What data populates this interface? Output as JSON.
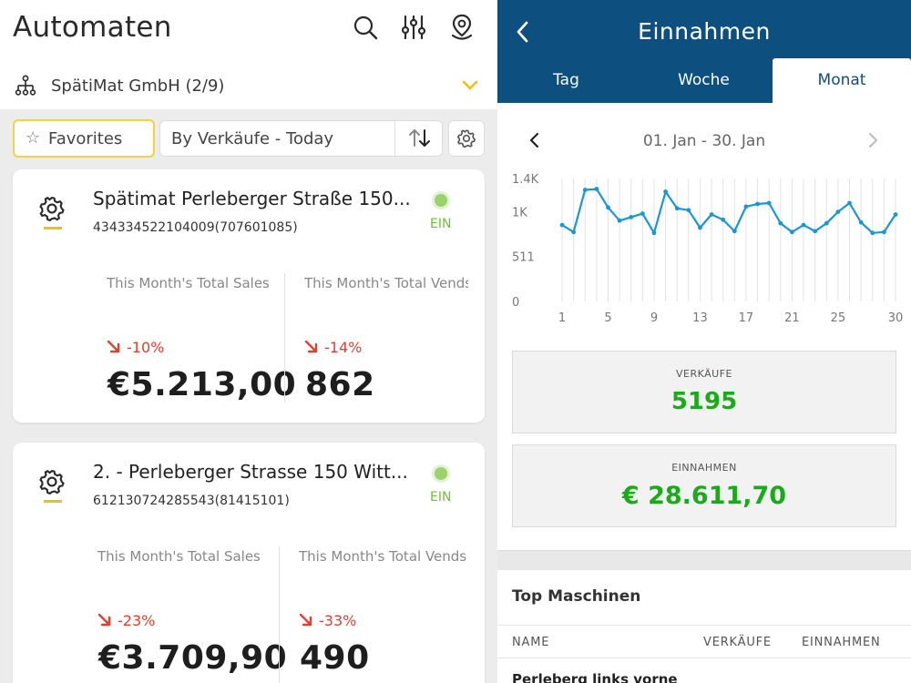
{
  "left": {
    "title": "Automaten",
    "header_icons": [
      "search-icon",
      "filter-sliders-icon",
      "location-pin-icon"
    ],
    "org_selector": {
      "label": "SpätiMat GmbH (2/9)",
      "icon": "org-tree-icon",
      "chevron": "chevron-down-icon"
    },
    "toolbar": {
      "favorites_label": "Favorites",
      "sort_value": "By Verkäufe - Today",
      "sort_icon": "sort-arrows-icon",
      "settings_icon": "gear-icon"
    },
    "cards": [
      {
        "name": "Spätimat Perleberger Straße 150...",
        "id": "434334522104009(707601085)",
        "status": "EIN",
        "sales_label": "This Month's Total Sales",
        "sales_change": "-10%",
        "sales_value": "€5.213,00",
        "vends_label": "This Month's Total Vends",
        "vends_change": "-14%",
        "vends_value": "862"
      },
      {
        "name": "2. - Perleberger Strasse 150 Witt...",
        "id": "612130724285543(81415101)",
        "status": "EIN",
        "sales_label": "This Month's Total Sales",
        "sales_change": "-23%",
        "sales_value": "€3.709,90",
        "vends_label": "This Month's Total Vends",
        "vends_change": "-33%",
        "vends_value": "490"
      }
    ]
  },
  "right": {
    "title": "Einnahmen",
    "back_icon": "back-chevron-icon",
    "tabs": [
      {
        "label": "Tag",
        "active": false
      },
      {
        "label": "Woche",
        "active": false
      },
      {
        "label": "Monat",
        "active": true
      }
    ],
    "date_range": "01. Jan - 30. Jan",
    "kpis": {
      "sales_label": "VERKÄUFE",
      "sales_value": "5195",
      "revenue_label": "EINNAHMEN",
      "revenue_value": "€ 28.611,70"
    },
    "top_section_title": "Top Maschinen",
    "table_headers": [
      "NAME",
      "VERKÄUFE",
      "EINNAHMEN"
    ],
    "table_rows": [
      {
        "name": "Perleberg links vorne"
      }
    ]
  },
  "colors": {
    "header_blue": "#0d4f7e",
    "accent_yellow": "#f2c200",
    "negative_red": "#e0412f",
    "positive_green": "#1aaa1a",
    "status_green": "#6fbf3a",
    "chart_line": "#1a96d4"
  },
  "chart_data": {
    "type": "line",
    "x": [
      1,
      2,
      3,
      4,
      5,
      6,
      7,
      8,
      9,
      10,
      11,
      12,
      13,
      14,
      15,
      16,
      17,
      18,
      19,
      20,
      21,
      22,
      23,
      24,
      25,
      26,
      27,
      28,
      29,
      30
    ],
    "series": [
      {
        "values": [
          870,
          790,
          1270,
          1280,
          1070,
          920,
          960,
          1000,
          780,
          1250,
          1060,
          1040,
          840,
          990,
          930,
          800,
          1080,
          1110,
          1120,
          890,
          790,
          870,
          800,
          890,
          1020,
          1120,
          900,
          780,
          790,
          990
        ]
      }
    ],
    "xticks": [
      1,
      5,
      9,
      13,
      17,
      21,
      25,
      30
    ],
    "yticks": [
      {
        "value": 0,
        "label": "0"
      },
      {
        "value": 511,
        "label": "511"
      },
      {
        "value": 1022,
        "label": "1K"
      },
      {
        "value": 1400,
        "label": "1.4K"
      }
    ],
    "ylim": [
      0,
      1400
    ],
    "xlim": [
      1,
      30
    ],
    "grid": "vertical"
  }
}
